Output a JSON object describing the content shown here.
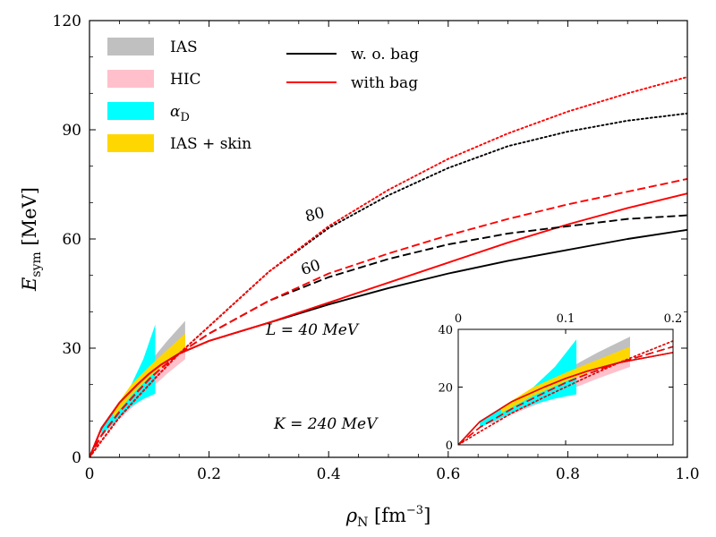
{
  "chart_data": {
    "type": "line",
    "xlabel": "ρ_N [fm^-3]",
    "ylabel": "E_sym [MeV]",
    "xlim": [
      0,
      1.0
    ],
    "ylim": [
      0,
      120
    ],
    "x_ticks": [
      "0",
      "0.2",
      "0.4",
      "0.6",
      "0.8",
      "1.0"
    ],
    "y_ticks": [
      "0",
      "30",
      "60",
      "90",
      "120"
    ],
    "legend": {
      "placement": "top-left",
      "bands": [
        {
          "label": "IAS",
          "color": "#c0c0c0"
        },
        {
          "label": "HIC",
          "color": "#ffc0cb"
        },
        {
          "label": "α_D",
          "color": "#00ffff"
        },
        {
          "label": "IAS + skin",
          "color": "#ffd700"
        }
      ],
      "lines": [
        {
          "label": "w. o. bag",
          "color": "#000000"
        },
        {
          "label": "with bag",
          "color": "#ff0000"
        }
      ]
    },
    "annotations": {
      "L_value": "L = 40 MeV",
      "K_value": "K = 240 MeV",
      "label_80": "80",
      "label_60": "60"
    },
    "series": [
      {
        "name": "L=40 w.o. bag",
        "style": "solid",
        "color": "#000000",
        "x": [
          0,
          0.02,
          0.05,
          0.08,
          0.1,
          0.12,
          0.15,
          0.2,
          0.3,
          0.4,
          0.5,
          0.6,
          0.7,
          0.8,
          0.9,
          1.0
        ],
        "y": [
          0,
          8,
          15,
          20,
          23,
          25.5,
          28.5,
          32,
          37,
          42,
          46.5,
          50.5,
          54,
          57,
          60,
          62.5
        ]
      },
      {
        "name": "L=40 with bag",
        "style": "solid",
        "color": "#ff0000",
        "x": [
          0,
          0.02,
          0.05,
          0.08,
          0.1,
          0.12,
          0.15,
          0.2,
          0.3,
          0.4,
          0.5,
          0.6,
          0.7,
          0.8,
          0.9,
          1.0
        ],
        "y": [
          0,
          8,
          15,
          20,
          23,
          25.5,
          28.5,
          32,
          37,
          42.5,
          48,
          53.5,
          59,
          64,
          68.5,
          72.5
        ]
      },
      {
        "name": "L=60 w.o. bag",
        "style": "dashed",
        "color": "#000000",
        "x": [
          0,
          0.02,
          0.05,
          0.08,
          0.1,
          0.12,
          0.15,
          0.2,
          0.3,
          0.4,
          0.5,
          0.6,
          0.7,
          0.8,
          0.9,
          1.0
        ],
        "y": [
          0,
          6,
          12.5,
          18,
          21.5,
          24.5,
          28.5,
          34,
          43,
          49.5,
          54.5,
          58.5,
          61.5,
          63.5,
          65.5,
          66.5
        ]
      },
      {
        "name": "L=60 with bag",
        "style": "dashed",
        "color": "#ff0000",
        "x": [
          0,
          0.02,
          0.05,
          0.08,
          0.1,
          0.12,
          0.15,
          0.2,
          0.3,
          0.4,
          0.5,
          0.6,
          0.7,
          0.8,
          0.9,
          1.0
        ],
        "y": [
          0,
          6,
          12.5,
          18,
          21.5,
          24.5,
          28.5,
          34,
          43,
          50.5,
          56,
          61,
          65.5,
          69.5,
          73,
          76.5
        ]
      },
      {
        "name": "L=80 w.o. bag",
        "style": "dotted",
        "color": "#000000",
        "x": [
          0,
          0.02,
          0.05,
          0.08,
          0.1,
          0.12,
          0.15,
          0.2,
          0.3,
          0.4,
          0.5,
          0.6,
          0.7,
          0.8,
          0.9,
          1.0
        ],
        "y": [
          0,
          4.5,
          11,
          16.5,
          20,
          23.5,
          28.5,
          36,
          51,
          63,
          72,
          79.5,
          85.5,
          89.5,
          92.5,
          94.5
        ]
      },
      {
        "name": "L=80 with bag",
        "style": "dotted",
        "color": "#ff0000",
        "x": [
          0,
          0.02,
          0.05,
          0.08,
          0.1,
          0.12,
          0.15,
          0.2,
          0.3,
          0.4,
          0.5,
          0.6,
          0.7,
          0.8,
          0.9,
          1.0
        ],
        "y": [
          0,
          4.5,
          11,
          16.5,
          20,
          23.5,
          28.5,
          36,
          51,
          63.5,
          73.5,
          82,
          89,
          95,
          100,
          104.5
        ]
      }
    ],
    "bands": [
      {
        "name": "IAS",
        "color": "#c0c0c0",
        "x": [
          0.05,
          0.08,
          0.11,
          0.13,
          0.16
        ],
        "lower": [
          12,
          18,
          23,
          25,
          27.5
        ],
        "upper": [
          15,
          22,
          28,
          32,
          37.5
        ]
      },
      {
        "name": "HIC",
        "color": "#ffc0cb",
        "x": [
          0.03,
          0.05,
          0.08,
          0.11,
          0.13,
          0.16
        ],
        "lower": [
          7,
          10.5,
          15,
          20,
          23,
          27
        ],
        "upper": [
          10,
          14,
          19.5,
          25,
          28,
          32
        ]
      },
      {
        "name": "α_D",
        "color": "#00ffff",
        "x": [
          0.02,
          0.05,
          0.07,
          0.09,
          0.11
        ],
        "lower": [
          6,
          11,
          14,
          16,
          17.5
        ],
        "upper": [
          8,
          15,
          20,
          27,
          36.5
        ]
      },
      {
        "name": "IAS + skin",
        "color": "#ffd700",
        "x": [
          0.04,
          0.07,
          0.1,
          0.13,
          0.16
        ],
        "lower": [
          11,
          17,
          22,
          26.5,
          30
        ],
        "upper": [
          13,
          20,
          25,
          29.5,
          34
        ]
      }
    ],
    "inset": {
      "xlim": [
        0,
        0.2
      ],
      "ylim": [
        0,
        40
      ],
      "x_ticks": [
        "0",
        "0.1",
        "0.2"
      ],
      "y_ticks": [
        "0",
        "20",
        "40"
      ]
    }
  }
}
